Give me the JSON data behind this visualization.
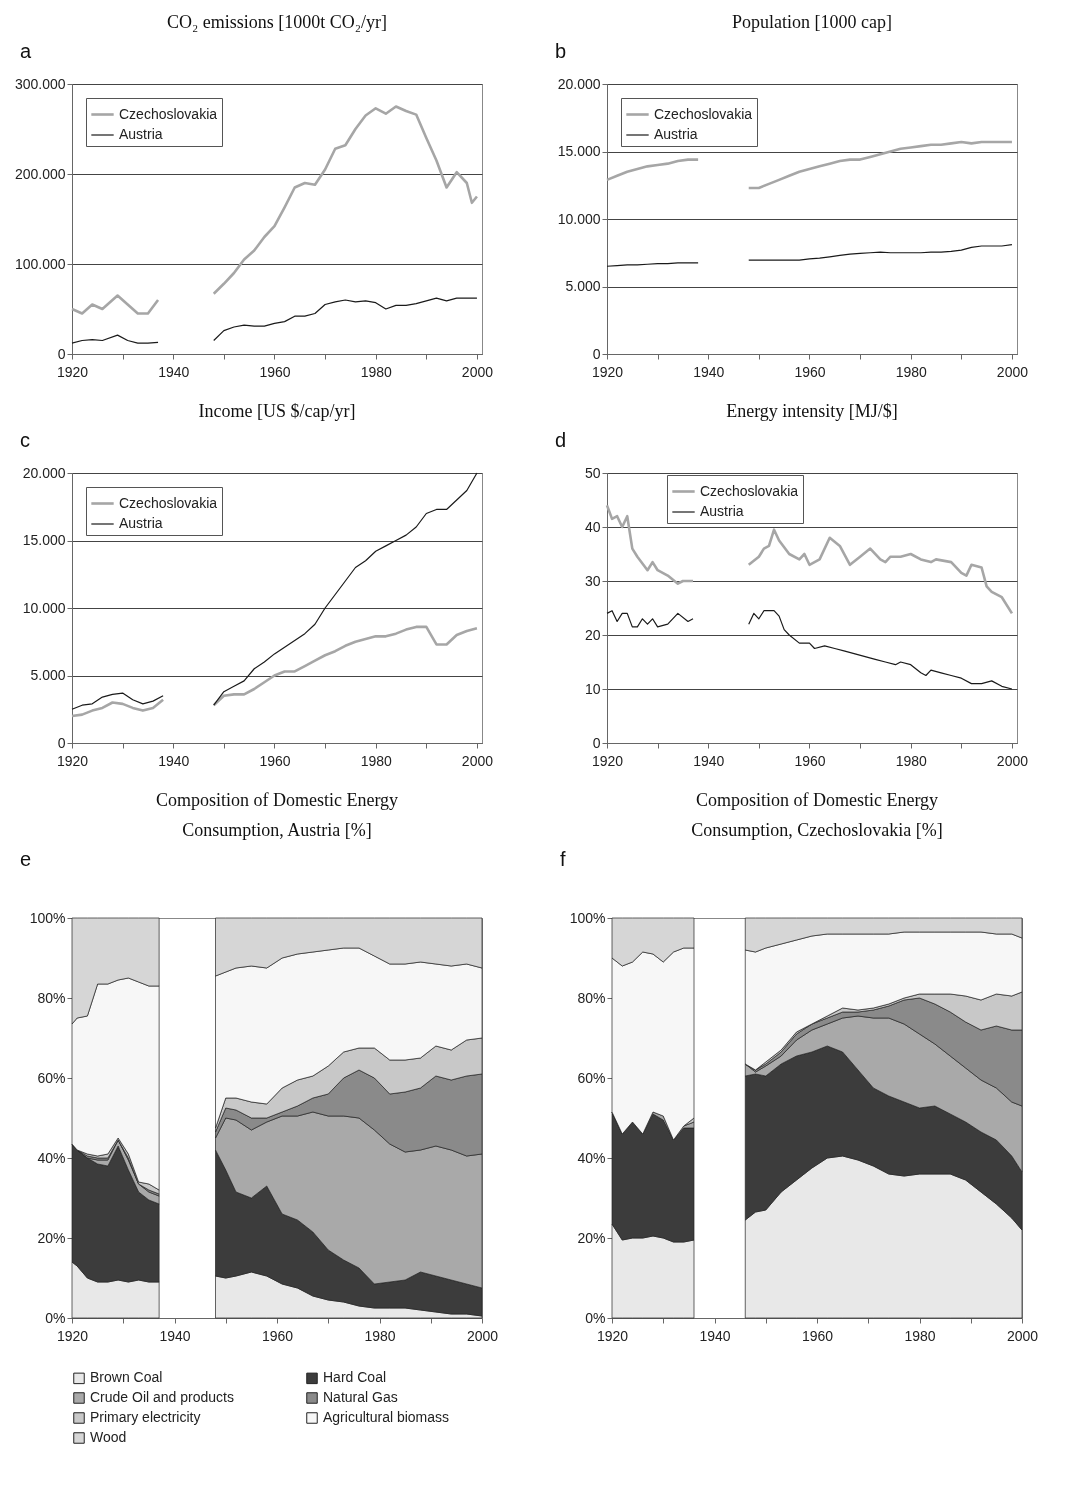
{
  "chart_data": [
    {
      "type": "line",
      "title": "CO₂ emissions [1000t CO₂/yr]",
      "annotations": [
        "a"
      ],
      "legend": "top left",
      "grid": "y",
      "xlim": [
        1920,
        2001
      ],
      "xticks": [
        1920,
        {
          "value": 1930,
          "label": null
        },
        1940,
        {
          "value": 1950,
          "label": null
        },
        1960,
        {
          "value": 1970,
          "label": null
        },
        1980,
        {
          "value": 1990,
          "label": null
        },
        2000
      ],
      "ylim": [
        0,
        300000
      ],
      "yticks": [
        0,
        {
          "value": 100000,
          "label": "100.000"
        },
        {
          "value": 200000,
          "label": "200.000"
        },
        {
          "value": 300000,
          "label": "300.000"
        }
      ],
      "x": [
        1920,
        1922,
        1924,
        1926,
        1929,
        1931,
        1933,
        1935,
        1937,
        1942,
        1948,
        1950,
        1952,
        1954,
        1956,
        1958,
        1960,
        1962,
        1964,
        1966,
        1968,
        1970,
        1972,
        1974,
        1976,
        1978,
        1980,
        1982,
        1984,
        1986,
        1988,
        1990,
        1992,
        1994,
        1996,
        1998,
        1999,
        2000
      ],
      "series": [
        {
          "name": "Czechoslovakia",
          "color": "#a6a6a6",
          "values": [
            50000,
            45000,
            55000,
            50000,
            65000,
            55000,
            45000,
            45000,
            60000,
            null,
            67000,
            78000,
            90000,
            105000,
            115000,
            130000,
            142000,
            163000,
            185000,
            190000,
            188000,
            205000,
            228000,
            232000,
            250000,
            265000,
            273000,
            267000,
            275000,
            270000,
            266000,
            240000,
            215000,
            185000,
            202000,
            190000,
            168000,
            175000
          ]
        },
        {
          "name": "Austria",
          "color": "#1a1a1a",
          "values": [
            12000,
            15000,
            16000,
            15000,
            21000,
            15000,
            12000,
            12000,
            13000,
            null,
            15000,
            26000,
            30000,
            32000,
            31000,
            31000,
            34000,
            36000,
            42000,
            42000,
            45000,
            55000,
            58000,
            60000,
            58000,
            59000,
            57000,
            50000,
            54000,
            54000,
            56000,
            59000,
            62000,
            59000,
            62000,
            62000,
            62000,
            62000
          ]
        }
      ]
    },
    {
      "type": "line",
      "title": "Population [1000 cap]",
      "annotations": [
        "b"
      ],
      "legend": "top left",
      "grid": "y",
      "xlim": [
        1920,
        2001
      ],
      "xticks": [
        1920,
        {
          "value": 1930,
          "label": null
        },
        1940,
        {
          "value": 1950,
          "label": null
        },
        1960,
        {
          "value": 1970,
          "label": null
        },
        1980,
        {
          "value": 1990,
          "label": null
        },
        2000
      ],
      "ylim": [
        0,
        20000
      ],
      "yticks": [
        0,
        {
          "value": 5000,
          "label": "5.000"
        },
        {
          "value": 10000,
          "label": "10.000"
        },
        {
          "value": 15000,
          "label": "15.000"
        },
        {
          "value": 20000,
          "label": "20.000"
        }
      ],
      "x": [
        1920,
        1922,
        1924,
        1926,
        1928,
        1930,
        1932,
        1934,
        1936,
        1938,
        1943,
        1948,
        1950,
        1952,
        1954,
        1956,
        1958,
        1960,
        1962,
        1964,
        1966,
        1968,
        1970,
        1972,
        1974,
        1976,
        1978,
        1980,
        1982,
        1984,
        1986,
        1988,
        1990,
        1992,
        1994,
        1996,
        1998,
        2000
      ],
      "series": [
        {
          "name": "Czechoslovakia",
          "color": "#a6a6a6",
          "values": [
            12900,
            13200,
            13500,
            13700,
            13900,
            14000,
            14100,
            14300,
            14400,
            14400,
            null,
            12300,
            12300,
            12600,
            12900,
            13200,
            13500,
            13700,
            13900,
            14100,
            14300,
            14400,
            14400,
            14600,
            14800,
            15000,
            15200,
            15300,
            15400,
            15500,
            15500,
            15600,
            15700,
            15600,
            15700,
            15700,
            15700,
            15700
          ]
        },
        {
          "name": "Austria",
          "color": "#1a1a1a",
          "values": [
            6500,
            6550,
            6600,
            6600,
            6650,
            6700,
            6700,
            6750,
            6750,
            6750,
            null,
            6950,
            6950,
            6950,
            6950,
            6950,
            6950,
            7050,
            7100,
            7200,
            7300,
            7400,
            7450,
            7500,
            7550,
            7500,
            7500,
            7500,
            7500,
            7550,
            7550,
            7600,
            7700,
            7900,
            8000,
            8000,
            8000,
            8100
          ]
        }
      ]
    },
    {
      "type": "line",
      "title": "Income [US $/cap/yr]",
      "annotations": [
        "c"
      ],
      "legend": "top left",
      "grid": "y",
      "xlim": [
        1920,
        2001
      ],
      "xticks": [
        1920,
        {
          "value": 1930,
          "label": null
        },
        1940,
        {
          "value": 1950,
          "label": null
        },
        1960,
        {
          "value": 1970,
          "label": null
        },
        1980,
        {
          "value": 1990,
          "label": null
        },
        2000
      ],
      "ylim": [
        0,
        20000
      ],
      "yticks": [
        0,
        {
          "value": 5000,
          "label": "5.000"
        },
        {
          "value": 10000,
          "label": "10.000"
        },
        {
          "value": 15000,
          "label": "15.000"
        },
        {
          "value": 20000,
          "label": "20.000"
        }
      ],
      "x": [
        1920,
        1922,
        1924,
        1926,
        1928,
        1930,
        1932,
        1934,
        1936,
        1938,
        1943,
        1948,
        1950,
        1952,
        1954,
        1956,
        1958,
        1960,
        1962,
        1964,
        1966,
        1968,
        1970,
        1972,
        1974,
        1976,
        1978,
        1980,
        1982,
        1984,
        1986,
        1988,
        1990,
        1992,
        1994,
        1996,
        1998,
        2000
      ],
      "series": [
        {
          "name": "Czechoslovakia",
          "color": "#a6a6a6",
          "values": [
            2000,
            2100,
            2400,
            2600,
            3000,
            2900,
            2600,
            2400,
            2600,
            3200,
            null,
            2800,
            3500,
            3600,
            3600,
            4000,
            4500,
            5000,
            5300,
            5300,
            5700,
            6100,
            6500,
            6800,
            7200,
            7500,
            7700,
            7900,
            7900,
            8100,
            8400,
            8600,
            8600,
            7300,
            7300,
            8000,
            8300,
            8500
          ]
        },
        {
          "name": "Austria",
          "color": "#1a1a1a",
          "values": [
            2500,
            2800,
            2900,
            3400,
            3600,
            3700,
            3200,
            2900,
            3100,
            3500,
            null,
            2800,
            3800,
            4200,
            4600,
            5500,
            6000,
            6600,
            7100,
            7600,
            8100,
            8800,
            10000,
            11000,
            12000,
            13000,
            13500,
            14200,
            14600,
            15000,
            15400,
            16000,
            17000,
            17300,
            17300,
            18000,
            18700,
            20000
          ]
        }
      ]
    },
    {
      "type": "line",
      "title": "Energy intensity [MJ/$]",
      "annotations": [
        "d"
      ],
      "legend": "top",
      "grid": "y",
      "xlim": [
        1920,
        2001
      ],
      "xticks": [
        1920,
        {
          "value": 1930,
          "label": null
        },
        1940,
        {
          "value": 1950,
          "label": null
        },
        1960,
        {
          "value": 1970,
          "label": null
        },
        1980,
        {
          "value": 1990,
          "label": null
        },
        2000
      ],
      "ylim": [
        0,
        50
      ],
      "yticks": [
        0,
        10,
        20,
        30,
        40,
        50
      ],
      "series": [
        {
          "name": "Czechoslovakia",
          "color": "#a6a6a6",
          "x": [
            1920,
            1921,
            1922,
            1923,
            1924,
            1925,
            1926,
            1928,
            1929,
            1930,
            1932,
            1934,
            1935,
            1937,
            1942,
            1948,
            1950,
            1951,
            1952,
            1953,
            1954,
            1956,
            1958,
            1959,
            1960,
            1962,
            1964,
            1966,
            1968,
            1970,
            1972,
            1974,
            1975,
            1976,
            1978,
            1980,
            1982,
            1984,
            1985,
            1988,
            1990,
            1991,
            1992,
            1994,
            1995,
            1996,
            1998,
            2000
          ],
          "values": [
            44,
            41.5,
            42,
            40,
            42,
            36,
            34.5,
            32,
            33.5,
            32,
            31,
            29.5,
            30,
            30,
            null,
            33,
            34.5,
            36,
            36.5,
            39.5,
            37.5,
            35,
            34,
            35,
            33,
            34,
            38,
            36.5,
            33,
            34.5,
            36,
            34,
            33.5,
            34.5,
            34.5,
            35,
            34,
            33.5,
            34,
            33.5,
            31.5,
            31,
            33,
            32.5,
            29,
            28,
            27,
            24
          ]
        },
        {
          "name": "Austria",
          "color": "#1a1a1a",
          "x": [
            1920,
            1921,
            1922,
            1923,
            1924,
            1925,
            1926,
            1927,
            1928,
            1929,
            1930,
            1932,
            1934,
            1936,
            1937,
            1942,
            1948,
            1949,
            1950,
            1951,
            1953,
            1954,
            1955,
            1956,
            1958,
            1960,
            1961,
            1963,
            1965,
            1967,
            1969,
            1971,
            1973,
            1975,
            1977,
            1978,
            1980,
            1982,
            1983,
            1984,
            1986,
            1988,
            1990,
            1992,
            1994,
            1996,
            1998,
            2000
          ],
          "values": [
            24,
            24.5,
            22.5,
            24,
            24,
            21.5,
            21.5,
            23,
            22,
            23,
            21.5,
            22,
            24,
            22.5,
            23,
            null,
            22,
            24,
            23,
            24.5,
            24.5,
            23.5,
            21,
            20,
            18.5,
            18.5,
            17.5,
            18,
            17.5,
            17,
            16.5,
            16,
            15.5,
            15,
            14.5,
            15,
            14.5,
            13,
            12.5,
            13.5,
            13,
            12.5,
            12,
            11,
            11,
            11.5,
            10.5,
            10
          ]
        }
      ]
    },
    {
      "type": "area",
      "stacked": true,
      "title": "Composition of Domestic Energy Consumption, Austria [%]",
      "annotations": [
        "e"
      ],
      "legend": "bottom",
      "xlim": [
        1920,
        2000
      ],
      "xticks": [
        1920,
        {
          "value": 1930,
          "label": null
        },
        1940,
        {
          "value": 1950,
          "label": null
        },
        1960,
        {
          "value": 1970,
          "label": null
        },
        1980,
        {
          "value": 1990,
          "label": null
        },
        2000
      ],
      "ylim": [
        0,
        100
      ],
      "yticks": [
        {
          "value": 0,
          "label": "0%"
        },
        {
          "value": 20,
          "label": "20%"
        },
        {
          "value": 40,
          "label": "40%"
        },
        {
          "value": 60,
          "label": "60%"
        },
        {
          "value": 80,
          "label": "80%"
        },
        {
          "value": 100,
          "label": "100%"
        }
      ],
      "x": [
        1920,
        1921,
        1923,
        1925,
        1927,
        1929,
        1931,
        1933,
        1935,
        1937,
        1942,
        1948,
        1950,
        1952,
        1955,
        1958,
        1961,
        1964,
        1967,
        1970,
        1973,
        1976,
        1979,
        1982,
        1985,
        1988,
        1991,
        1994,
        1997,
        2000
      ],
      "series": [
        {
          "name": "Brown Coal",
          "color": "#e8e8e8",
          "values": [
            14,
            13,
            10,
            9,
            9,
            9.5,
            9,
            9.5,
            9,
            9,
            null,
            10.5,
            10,
            10.5,
            11.5,
            10.5,
            8.5,
            7.5,
            5.5,
            4.5,
            4,
            3,
            2.5,
            2.5,
            2.5,
            2,
            1.5,
            1,
            1,
            0.5
          ]
        },
        {
          "name": "Hard Coal",
          "color": "#3c3c3c",
          "values": [
            29.5,
            29,
            30,
            29.5,
            29,
            33.5,
            28,
            22,
            20.5,
            19.5,
            null,
            31.5,
            27,
            21,
            18.5,
            22.5,
            17.5,
            17,
            16,
            12.5,
            10.5,
            9.5,
            6,
            6.5,
            7,
            9.5,
            9,
            8.5,
            7.5,
            7
          ]
        },
        {
          "name": "Crude Oil and products",
          "color": "#a9a9a9",
          "values": [
            0,
            0,
            0,
            1,
            1.5,
            1.5,
            2.5,
            2,
            2,
            2,
            null,
            3,
            13,
            18,
            17,
            16,
            24.5,
            26,
            30,
            33.5,
            36,
            37.5,
            38.5,
            34.5,
            32,
            30.5,
            32.5,
            32.5,
            32,
            33.5
          ]
        },
        {
          "name": "Natural Gas",
          "color": "#8a8a8a",
          "values": [
            0,
            0,
            0.5,
            0.5,
            0.5,
            0,
            0.5,
            0,
            0.5,
            0.5,
            null,
            1.5,
            2.5,
            2.5,
            3,
            1,
            1,
            2.5,
            3.5,
            5.5,
            9.5,
            12,
            13,
            12.5,
            15,
            15.5,
            17.5,
            17.5,
            20,
            20
          ]
        },
        {
          "name": "Primary electricity",
          "color": "#c8c8c8",
          "values": [
            0,
            0,
            0.5,
            0.5,
            1,
            0.5,
            1,
            0.5,
            1.5,
            1,
            null,
            1,
            2.5,
            3,
            4,
            3.5,
            6,
            6.5,
            5.5,
            7,
            6.5,
            5.5,
            7.5,
            8.5,
            8,
            7.5,
            7.5,
            7.5,
            9,
            9
          ]
        },
        {
          "name": "Agricultural biomass",
          "color": "#f7f7f7",
          "values": [
            30,
            33,
            34.5,
            43,
            42.5,
            39.5,
            44,
            50,
            49.5,
            51,
            null,
            38,
            31.5,
            32.5,
            34,
            34,
            32.5,
            31.5,
            31,
            29,
            26,
            25,
            23,
            24,
            24,
            24,
            20.5,
            21,
            19,
            17.5
          ]
        },
        {
          "name": "Wood",
          "color": "#d6d6d6",
          "values": [
            26.5,
            25,
            24.5,
            16.5,
            16.5,
            15.5,
            15,
            16,
            17,
            17,
            null,
            14.5,
            13.5,
            12.5,
            12,
            12.5,
            10,
            9,
            8.5,
            8,
            7.5,
            7.5,
            9.5,
            11.5,
            11.5,
            11,
            11.5,
            12,
            11.5,
            12.5
          ]
        }
      ]
    },
    {
      "type": "area",
      "stacked": true,
      "title": "Composition of Domestic Energy Consumption, Czechoslovakia [%]",
      "annotations": [
        "f"
      ],
      "xlim": [
        1920,
        2000
      ],
      "xticks": [
        1920,
        {
          "value": 1930,
          "label": null
        },
        1940,
        {
          "value": 1950,
          "label": null
        },
        1960,
        {
          "value": 1970,
          "label": null
        },
        1980,
        {
          "value": 1990,
          "label": null
        },
        2000
      ],
      "ylim": [
        0,
        100
      ],
      "yticks": [
        {
          "value": 0,
          "label": "0%"
        },
        {
          "value": 20,
          "label": "20%"
        },
        {
          "value": 40,
          "label": "40%"
        },
        {
          "value": 60,
          "label": "60%"
        },
        {
          "value": 80,
          "label": "80%"
        },
        {
          "value": 100,
          "label": "100%"
        }
      ],
      "x": [
        1920,
        1922,
        1924,
        1926,
        1928,
        1930,
        1932,
        1934,
        1936,
        1940,
        1946,
        1948,
        1950,
        1953,
        1956,
        1959,
        1962,
        1965,
        1968,
        1971,
        1974,
        1977,
        1980,
        1983,
        1986,
        1989,
        1992,
        1995,
        1998,
        2000
      ],
      "series": [
        {
          "color": "#e8e8e8",
          "values": [
            23.5,
            19.5,
            20,
            20,
            20.5,
            20,
            19,
            19,
            19.5,
            null,
            24.5,
            26.5,
            27,
            31.5,
            34.5,
            37.5,
            40,
            40.5,
            39.5,
            38,
            36,
            35.5,
            36,
            36,
            36,
            34.5,
            31.5,
            28.5,
            25,
            22
          ]
        },
        {
          "color": "#3c3c3c",
          "values": [
            28,
            26.5,
            29,
            26,
            30.5,
            29.5,
            25.5,
            28.5,
            28,
            null,
            36,
            34.5,
            33.5,
            32,
            31,
            29,
            28,
            26,
            22.5,
            19.5,
            19.5,
            18.5,
            16.5,
            17,
            15,
            14.5,
            15,
            16,
            15.5,
            14.5
          ]
        },
        {
          "color": "#a9a9a9",
          "values": [
            0,
            0,
            0,
            0,
            0.5,
            1,
            0,
            0.5,
            1.5,
            null,
            3,
            0.5,
            2.5,
            2,
            4,
            5.5,
            5.5,
            8.5,
            13.5,
            17.5,
            19.5,
            19.5,
            18.5,
            15.5,
            14.5,
            13.5,
            13,
            13,
            13.5,
            16.5
          ]
        },
        {
          "color": "#8a8a8a",
          "values": [
            null,
            null,
            null,
            null,
            null,
            null,
            null,
            null,
            null,
            null,
            0,
            0.5,
            0.5,
            1,
            1.5,
            1.5,
            1.5,
            1.5,
            1,
            2,
            3,
            6,
            9,
            10,
            11,
            11.5,
            12.5,
            15.5,
            18,
            19
          ]
        },
        {
          "color": "#c8c8c8",
          "values": [
            null,
            null,
            null,
            null,
            null,
            null,
            null,
            0,
            1,
            null,
            0,
            0,
            0.5,
            0.5,
            0.5,
            0,
            0.5,
            1,
            0.5,
            0.5,
            0.5,
            0.5,
            1,
            2.5,
            4.5,
            6.5,
            7.5,
            8,
            8.5,
            9.5
          ]
        },
        {
          "color": "#f7f7f7",
          "values": [
            38.5,
            42,
            40,
            45.5,
            39.5,
            38.5,
            47,
            44.5,
            42.5,
            null,
            28.5,
            29.5,
            28.5,
            26.5,
            23,
            22,
            20.5,
            18.5,
            19,
            18.5,
            17.5,
            16.5,
            15.5,
            15.5,
            15.5,
            16,
            17,
            15,
            15.5,
            13.5
          ]
        },
        {
          "color": "#d6d6d6",
          "values": [
            10,
            12,
            11,
            8.5,
            9,
            11,
            8.5,
            7.5,
            7.5,
            null,
            8,
            8.5,
            7.5,
            6.5,
            5.5,
            4.5,
            4,
            4,
            4,
            4,
            4,
            3.5,
            3.5,
            3.5,
            3.5,
            3.5,
            3.5,
            4,
            4,
            5
          ]
        }
      ]
    }
  ]
}
